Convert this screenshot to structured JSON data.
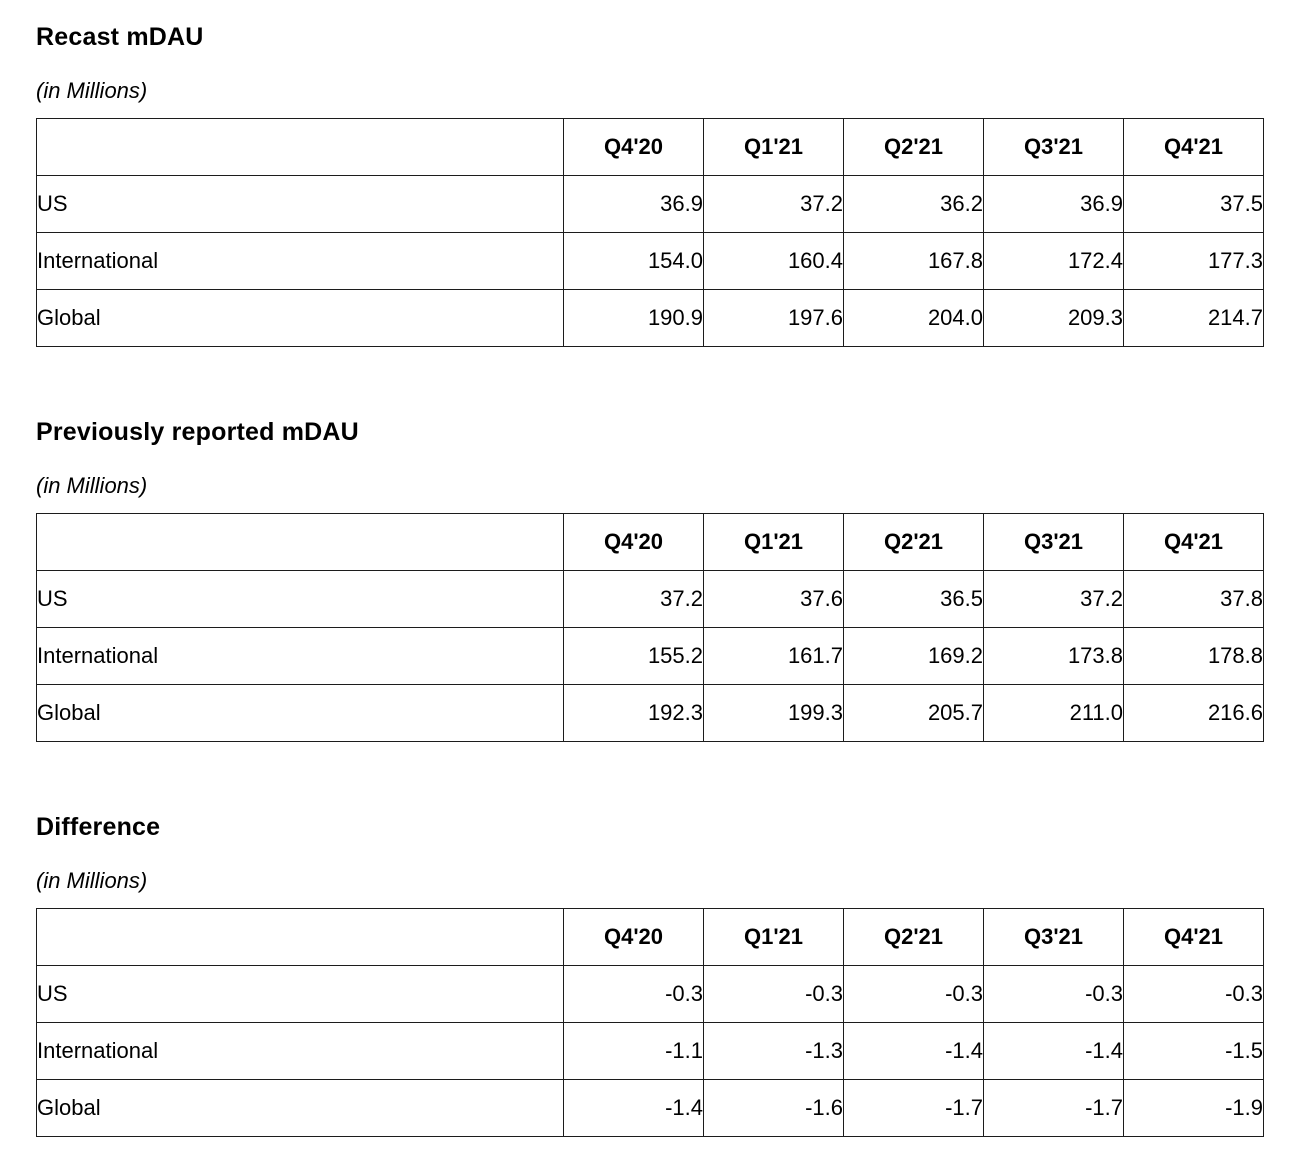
{
  "page": {
    "background_color": "#ffffff",
    "text_color": "#000000",
    "table_border_color": "#1c1c1c"
  },
  "tables": [
    {
      "title": "Recast mDAU",
      "subtitle": "(in Millions)",
      "columns": [
        "Q4'20",
        "Q1'21",
        "Q2'21",
        "Q3'21",
        "Q4'21"
      ],
      "rows": [
        {
          "label": "US",
          "values": [
            "36.9",
            "37.2",
            "36.2",
            "36.9",
            "37.5"
          ]
        },
        {
          "label": "International",
          "values": [
            "154.0",
            "160.4",
            "167.8",
            "172.4",
            "177.3"
          ]
        },
        {
          "label": "Global",
          "values": [
            "190.9",
            "197.6",
            "204.0",
            "209.3",
            "214.7"
          ]
        }
      ]
    },
    {
      "title": "Previously reported mDAU",
      "subtitle": "(in Millions)",
      "columns": [
        "Q4'20",
        "Q1'21",
        "Q2'21",
        "Q3'21",
        "Q4'21"
      ],
      "rows": [
        {
          "label": "US",
          "values": [
            "37.2",
            "37.6",
            "36.5",
            "37.2",
            "37.8"
          ]
        },
        {
          "label": "International",
          "values": [
            "155.2",
            "161.7",
            "169.2",
            "173.8",
            "178.8"
          ]
        },
        {
          "label": "Global",
          "values": [
            "192.3",
            "199.3",
            "205.7",
            "211.0",
            "216.6"
          ]
        }
      ]
    },
    {
      "title": "Difference",
      "subtitle": "(in Millions)",
      "columns": [
        "Q4'20",
        "Q1'21",
        "Q2'21",
        "Q3'21",
        "Q4'21"
      ],
      "rows": [
        {
          "label": "US",
          "values": [
            "-0.3",
            "-0.3",
            "-0.3",
            "-0.3",
            "-0.3"
          ]
        },
        {
          "label": "International",
          "values": [
            "-1.1",
            "-1.3",
            "-1.4",
            "-1.4",
            "-1.5"
          ]
        },
        {
          "label": "Global",
          "values": [
            "-1.4",
            "-1.6",
            "-1.7",
            "-1.7",
            "-1.9"
          ]
        }
      ]
    }
  ]
}
